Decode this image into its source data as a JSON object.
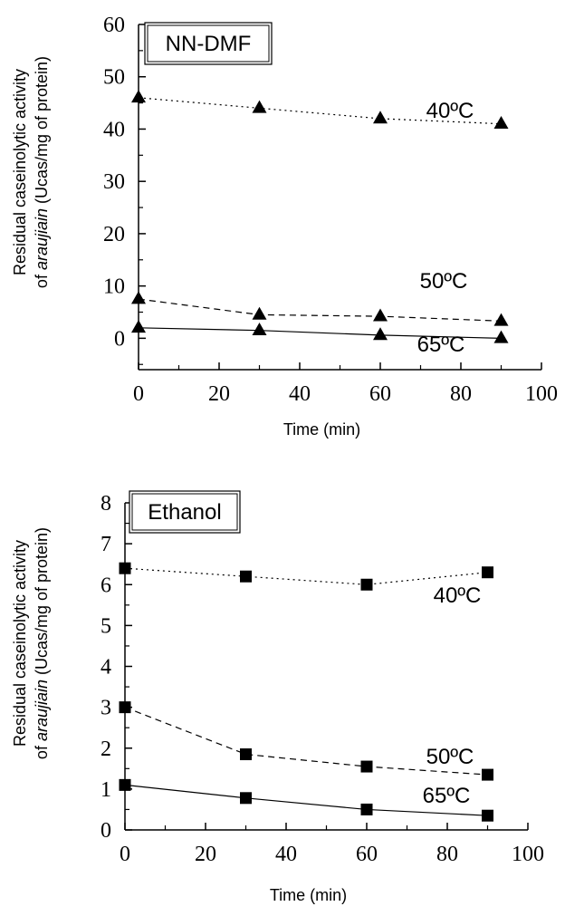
{
  "chart_data": [
    {
      "type": "line",
      "panel_label": "NN-DMF",
      "xlabel": "Time (min)",
      "ylabel_line1": "Residual caseinolytic activity",
      "ylabel_line2_prefix": "of ",
      "ylabel_line2_italic": "araujiain",
      "ylabel_line2_suffix": " (Ucas/mg of protein)",
      "xlim": [
        0,
        100
      ],
      "ylim": [
        -6,
        60
      ],
      "xticks": [
        0,
        20,
        40,
        60,
        80,
        100
      ],
      "yticks": [
        0,
        10,
        20,
        30,
        40,
        50,
        60
      ],
      "marker": "triangle",
      "series": [
        {
          "name": "40ºC",
          "dash": "dotted",
          "x": [
            0,
            30,
            60,
            90
          ],
          "y": [
            46,
            44,
            42,
            41
          ]
        },
        {
          "name": "50ºC",
          "dash": "dashed",
          "x": [
            0,
            30,
            60,
            90
          ],
          "y": [
            7.5,
            4.5,
            4.2,
            3.3
          ]
        },
        {
          "name": "65ºC",
          "dash": "solid",
          "x": [
            0,
            30,
            60,
            90
          ],
          "y": [
            2,
            1.5,
            0.6,
            0
          ]
        }
      ]
    },
    {
      "type": "line",
      "panel_label": "Ethanol",
      "xlabel": "Time (min)",
      "ylabel_line1": "Residual caseinolytic activity",
      "ylabel_line2_prefix": "of ",
      "ylabel_line2_italic": "araujiain",
      "ylabel_line2_suffix": " (Ucas/mg of protein)",
      "xlim": [
        0,
        100
      ],
      "ylim": [
        0,
        8
      ],
      "xticks": [
        0,
        20,
        40,
        60,
        80,
        100
      ],
      "yticks": [
        0,
        1,
        2,
        3,
        4,
        5,
        6,
        7,
        8
      ],
      "marker": "square",
      "series": [
        {
          "name": "40ºC",
          "dash": "dotted",
          "x": [
            0,
            30,
            60,
            90
          ],
          "y": [
            6.4,
            6.2,
            6.0,
            6.3
          ]
        },
        {
          "name": "50ºC",
          "dash": "dashed",
          "x": [
            0,
            30,
            60,
            90
          ],
          "y": [
            3.0,
            1.85,
            1.55,
            1.35
          ]
        },
        {
          "name": "65ºC",
          "dash": "solid",
          "x": [
            0,
            30,
            60,
            90
          ],
          "y": [
            1.1,
            0.78,
            0.5,
            0.35
          ]
        }
      ]
    }
  ]
}
